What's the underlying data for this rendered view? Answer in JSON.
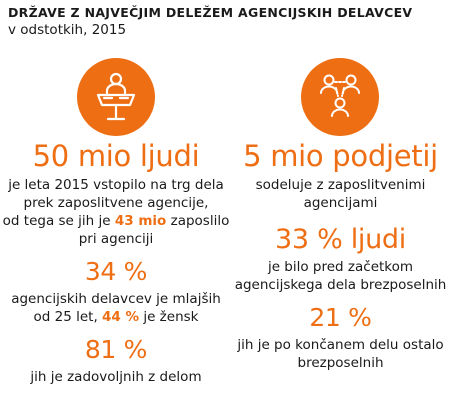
{
  "header": {
    "title": "DRŽAVE Z NAJVEČJIM DELEŽEM AGENCIJSKIH DELAVCEV",
    "subtitle": "v odstotkih, 2015"
  },
  "colors": {
    "accent": "#ee6e14",
    "text": "#1a1a1a"
  },
  "left": {
    "icon": "presenter-at-desk-icon",
    "headline": "50 mio ljudi",
    "line1": "je leta 2015 vstopilo na trg dela",
    "line2": "prek zaposlitvene agencije,",
    "line3_a": "od tega se jih je ",
    "line3_hl": "43 mio",
    "line3_b": " zaposlilo",
    "line4": "pri agenciji",
    "stat2_value": "34 %",
    "stat2_line1": "agencijskih delavcev je mlajših",
    "stat2_line2_a": "od 25 let, ",
    "stat2_line2_hl": "44 %",
    "stat2_line2_b": " je žensk",
    "stat3_value": "81 %",
    "stat3_line1": "jih je zadovoljnih z delom"
  },
  "right": {
    "icon": "people-network-icon",
    "headline": "5 mio podjetij",
    "line1": "sodeluje z zaposlitvenimi",
    "line2": "agencijami",
    "stat2_value": "33 % ljudi",
    "stat2_line1": "je bilo pred začetkom",
    "stat2_line2": "agencijskega dela brezposelnih",
    "stat3_value": "21 %",
    "stat3_line1": "jih je po končanem delu ostalo",
    "stat3_line2": "brezposelnih"
  }
}
